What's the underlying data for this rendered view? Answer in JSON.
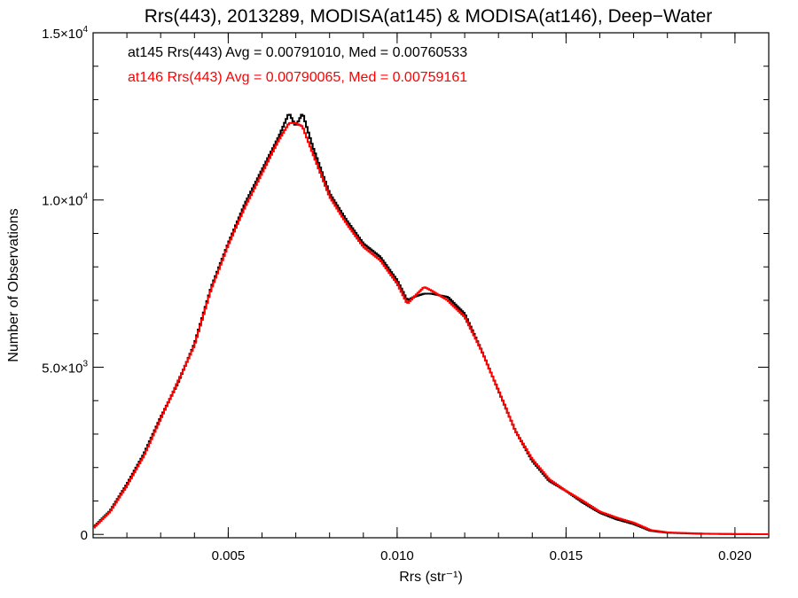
{
  "chart_data": {
    "type": "line",
    "title": "Rrs(443), 2013289, MODISA(at145) & MODISA(at146), Deep−Water",
    "xlabel": "Rrs (str⁻¹)",
    "ylabel": "Number of Observations",
    "xlim": [
      0.001,
      0.021
    ],
    "ylim": [
      -100,
      15000
    ],
    "x_ticks": [
      {
        "value": 0.005,
        "label": "0.005"
      },
      {
        "value": 0.01,
        "label": "0.010"
      },
      {
        "value": 0.015,
        "label": "0.015"
      },
      {
        "value": 0.02,
        "label": "0.020"
      }
    ],
    "y_ticks": [
      {
        "value": 0,
        "mant": "0",
        "exp": ""
      },
      {
        "value": 5000,
        "mant": "5.0×10",
        "exp": "3"
      },
      {
        "value": 10000,
        "mant": "1.0×10",
        "exp": "4"
      },
      {
        "value": 15000,
        "mant": "1.5×10",
        "exp": "4"
      }
    ],
    "grid": false,
    "series": [
      {
        "name": "at145",
        "color": "#000000",
        "stat_text": "at145 Rrs(443) Avg = 0.00791010, Med = 0.00760533",
        "x": [
          0.001,
          0.0015,
          0.002,
          0.0025,
          0.003,
          0.0035,
          0.004,
          0.0045,
          0.005,
          0.0055,
          0.006,
          0.0065,
          0.0068,
          0.007,
          0.0072,
          0.0075,
          0.008,
          0.0085,
          0.009,
          0.0095,
          0.01,
          0.0103,
          0.0105,
          0.0108,
          0.011,
          0.0115,
          0.012,
          0.0125,
          0.013,
          0.0135,
          0.014,
          0.0145,
          0.015,
          0.0155,
          0.016,
          0.0165,
          0.017,
          0.0175,
          0.018,
          0.019,
          0.02,
          0.021
        ],
        "y": [
          200,
          700,
          1500,
          2400,
          3500,
          4500,
          5700,
          7400,
          8700,
          9900,
          10900,
          11900,
          12600,
          12200,
          12600,
          11600,
          10200,
          9400,
          8700,
          8300,
          7600,
          7000,
          7100,
          7200,
          7200,
          7100,
          6600,
          5500,
          4300,
          3100,
          2200,
          1600,
          1300,
          950,
          650,
          450,
          310,
          110,
          50,
          20,
          10,
          5
        ]
      },
      {
        "name": "at146",
        "color": "#ff0000",
        "stat_text": "at146 Rrs(443) Avg = 0.00790065, Med = 0.00759161",
        "x": [
          0.001,
          0.0015,
          0.002,
          0.0025,
          0.003,
          0.0035,
          0.004,
          0.0045,
          0.005,
          0.0055,
          0.006,
          0.0065,
          0.0068,
          0.007,
          0.0072,
          0.0075,
          0.008,
          0.0085,
          0.009,
          0.0095,
          0.01,
          0.0103,
          0.0105,
          0.0108,
          0.011,
          0.0115,
          0.012,
          0.0125,
          0.013,
          0.0135,
          0.014,
          0.0145,
          0.015,
          0.0155,
          0.016,
          0.0165,
          0.017,
          0.0175,
          0.018,
          0.019,
          0.02,
          0.021
        ],
        "y": [
          180,
          680,
          1450,
          2350,
          3450,
          4550,
          5650,
          7350,
          8650,
          9800,
          10800,
          11800,
          12300,
          12300,
          12200,
          11400,
          10100,
          9300,
          8600,
          8200,
          7500,
          6900,
          7100,
          7400,
          7300,
          7000,
          6500,
          5500,
          4300,
          3100,
          2250,
          1650,
          1300,
          1000,
          680,
          500,
          350,
          130,
          60,
          25,
          10,
          5
        ]
      }
    ]
  }
}
